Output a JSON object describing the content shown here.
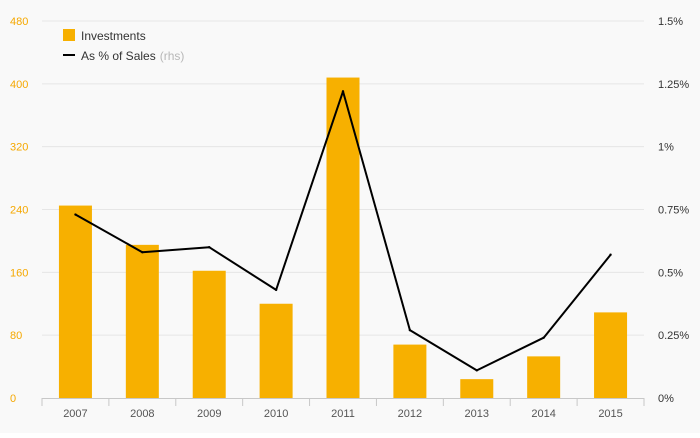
{
  "chart_data": {
    "type": "bar",
    "categories": [
      "2007",
      "2008",
      "2009",
      "2010",
      "2011",
      "2012",
      "2013",
      "2014",
      "2015"
    ],
    "series": [
      {
        "name": "Investments",
        "type": "bar",
        "axis": "left",
        "color": "#f7b000",
        "values": [
          245,
          195,
          162,
          120,
          408,
          68,
          24,
          53,
          109
        ]
      },
      {
        "name": "As % of Sales",
        "name_note": "(rhs)",
        "type": "line",
        "axis": "right",
        "color": "#000000",
        "values": [
          0.73,
          0.58,
          0.6,
          0.43,
          1.22,
          0.27,
          0.11,
          0.24,
          0.57
        ]
      }
    ],
    "ylim_left": [
      0,
      480
    ],
    "left_ticks": [
      "0",
      "80",
      "160",
      "240",
      "320",
      "400",
      "480"
    ],
    "ylim_right": [
      0,
      1.5
    ],
    "right_ticks": [
      "0%",
      "0.25%",
      "0.5%",
      "0.75%",
      "1%",
      "1.25%",
      "1.5%"
    ],
    "grid": true,
    "legend": "top-left"
  }
}
